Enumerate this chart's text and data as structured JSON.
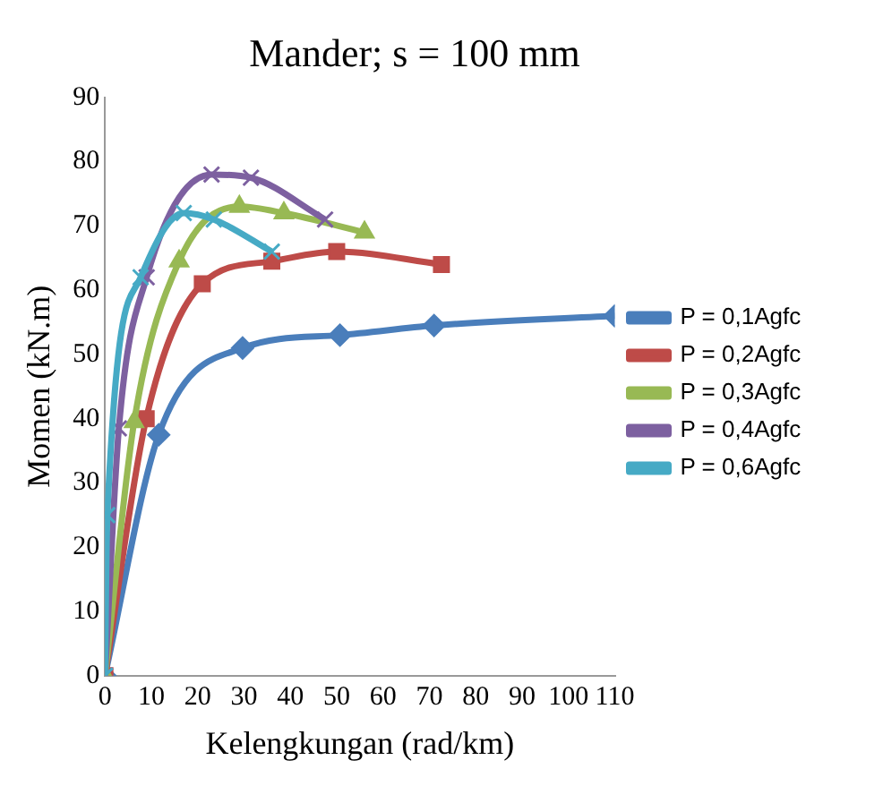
{
  "chart_data": {
    "type": "line",
    "title": "Mander; s = 100 mm",
    "xlabel": "Kelengkungan (rad/km)",
    "ylabel": "Momen (kN.m)",
    "xlim": [
      0,
      110
    ],
    "xticks": [
      0,
      10,
      20,
      30,
      40,
      50,
      60,
      70,
      80,
      90,
      100,
      110
    ],
    "ylim": [
      0,
      90
    ],
    "yticks": [
      0,
      10,
      20,
      30,
      40,
      50,
      60,
      70,
      80,
      90
    ],
    "grid": false,
    "legend": "right",
    "series": [
      {
        "name": "P = 0,1Agfc",
        "color": "#4a7ebb",
        "marker": "diamond",
        "x": [
          0,
          11.6,
          29.7,
          50.7,
          71,
          110
        ],
        "values": [
          0,
          37.5,
          51,
          53,
          54.5,
          56
        ]
      },
      {
        "name": "P = 0,2Agfc",
        "color": "#be4b48",
        "marker": "square",
        "x": [
          0,
          8.9,
          21,
          36,
          50,
          72.6
        ],
        "values": [
          0,
          40,
          61,
          64.5,
          66,
          64
        ]
      },
      {
        "name": "P = 0,3Agfc",
        "color": "#98b954",
        "marker": "triangle",
        "x": [
          0,
          6.3,
          16,
          29,
          38.6,
          56
        ],
        "values": [
          0,
          39.5,
          64.5,
          73,
          72,
          69
        ]
      },
      {
        "name": "P = 0,4Agfc",
        "color": "#7d60a0",
        "marker": "cross",
        "x": [
          0,
          3,
          9,
          23,
          31.5,
          47.5
        ],
        "values": [
          0,
          38.5,
          62,
          78,
          77.5,
          71
        ]
      },
      {
        "name": "P = 0,6Agfc",
        "color": "#46aac5",
        "marker": "cross",
        "x": [
          0,
          0.5,
          7.7,
          17,
          23.5,
          36
        ],
        "values": [
          0,
          25,
          62,
          72,
          71,
          66
        ]
      }
    ]
  }
}
